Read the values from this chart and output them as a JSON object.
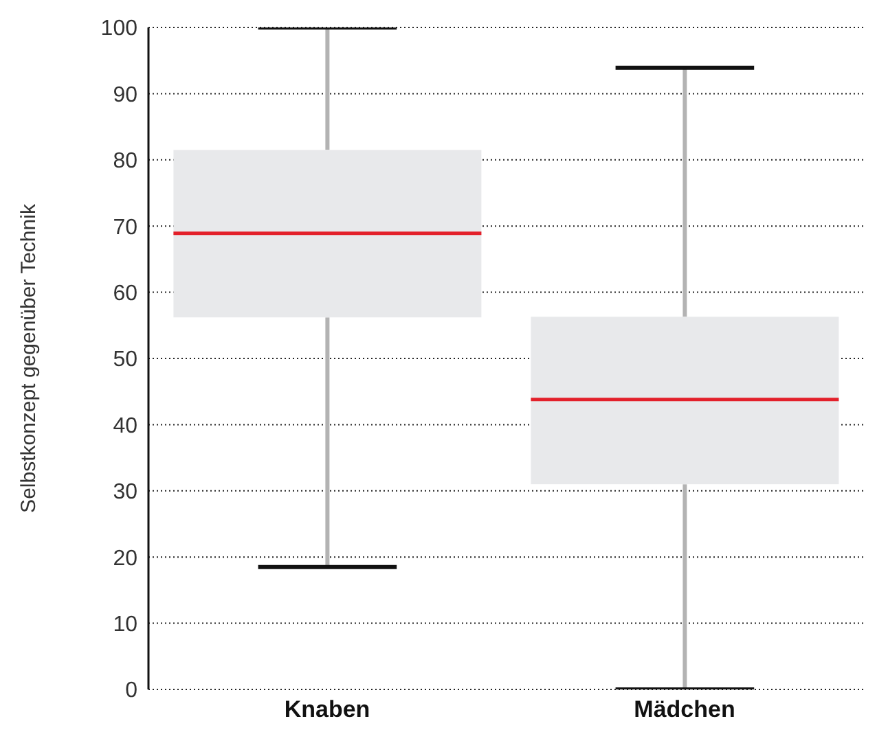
{
  "chart_data": {
    "type": "box",
    "ylabel": "Selbstkonzept gegenüber Technik",
    "categories": [
      "Knaben",
      "Mädchen"
    ],
    "color": "#e8e9eb",
    "boxes": [
      {
        "low": 18.5,
        "q1": 56.2,
        "median": 68.9,
        "q3": 81.5,
        "high": 100
      },
      {
        "low": 0,
        "q1": 31,
        "median": 43.8,
        "q3": 56.3,
        "high": 93.9
      }
    ],
    "ylim": [
      0,
      100
    ],
    "yticks": [
      0,
      10,
      20,
      30,
      40,
      50,
      60,
      70,
      80,
      90,
      100
    ],
    "grid": "y"
  }
}
